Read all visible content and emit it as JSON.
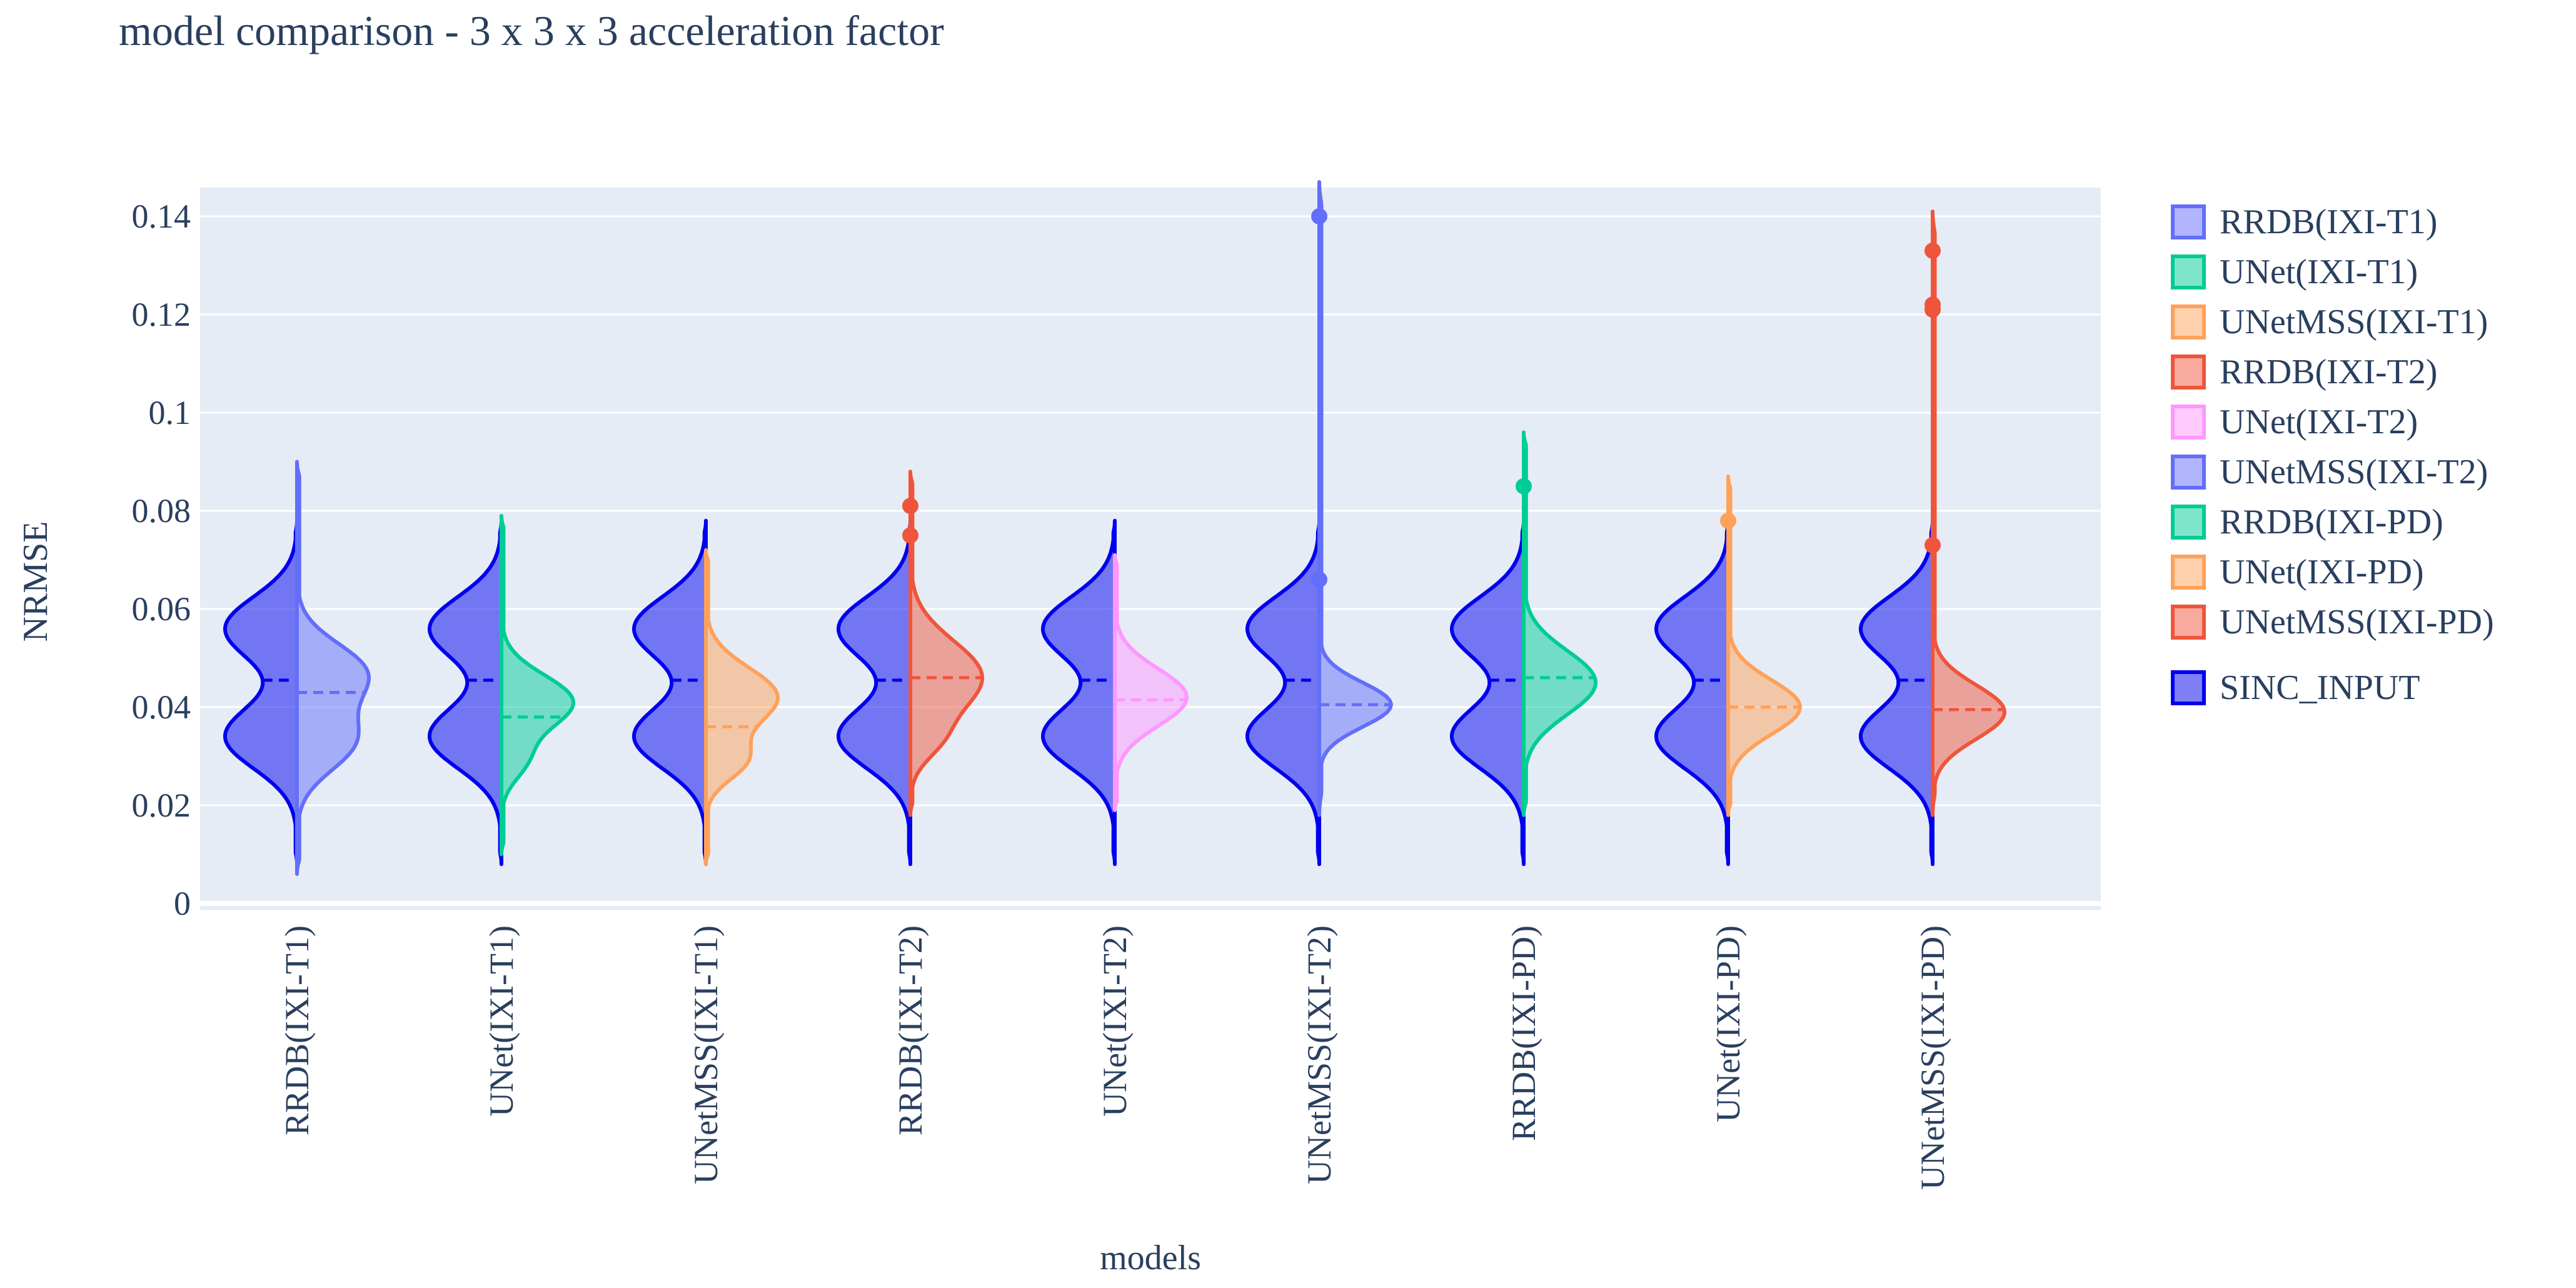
{
  "chart_data": {
    "type": "violin",
    "title": "model comparison - 3 x 3 x 3 acceleration factor",
    "xlabel": "models",
    "ylabel": "NRMSE",
    "ylim": [
      0,
      0.147
    ],
    "yticks": [
      0,
      0.02,
      0.04,
      0.06,
      0.08,
      0.1,
      0.12,
      0.14
    ],
    "ytick_labels": [
      "0",
      "0.02",
      "0.04",
      "0.06",
      "0.08",
      "0.1",
      "0.12",
      "0.14"
    ],
    "categories": [
      "RRDB(IXI-T1)",
      "UNet(IXI-T1)",
      "UNetMSS(IXI-T1)",
      "RRDB(IXI-T2)",
      "UNet(IXI-T2)",
      "UNetMSS(IXI-T2)",
      "RRDB(IXI-PD)",
      "UNet(IXI-PD)",
      "UNetMSS(IXI-PD)"
    ],
    "baseline": {
      "name": "SINC_INPUT",
      "side": "negative",
      "color": "#0000ee",
      "min": 0.008,
      "max": 0.078,
      "mean": 0.0455,
      "modes": [
        0.056,
        0.034
      ],
      "mode_spread": 0.0065
    },
    "series": [
      {
        "name": "RRDB(IXI-T1)",
        "color": "#636efa",
        "min": 0.006,
        "max": 0.09,
        "mean": 0.043,
        "peaks": [
          [
            0.047,
            0.006,
            0.85
          ],
          [
            0.033,
            0.006,
            0.7
          ]
        ],
        "outliers": []
      },
      {
        "name": "UNet(IXI-T1)",
        "color": "#00cc96",
        "min": 0.01,
        "max": 0.079,
        "mean": 0.038,
        "peaks": [
          [
            0.041,
            0.0055,
            1.0
          ],
          [
            0.029,
            0.004,
            0.3
          ]
        ],
        "outliers": []
      },
      {
        "name": "UNetMSS(IXI-T1)",
        "color": "#ffa15a",
        "min": 0.008,
        "max": 0.072,
        "mean": 0.036,
        "peaks": [
          [
            0.042,
            0.006,
            0.9
          ],
          [
            0.029,
            0.004,
            0.45
          ]
        ],
        "outliers": []
      },
      {
        "name": "RRDB(IXI-T2)",
        "color": "#ef553b",
        "min": 0.018,
        "max": 0.088,
        "mean": 0.046,
        "peaks": [
          [
            0.046,
            0.0075,
            1.0
          ],
          [
            0.033,
            0.004,
            0.25
          ]
        ],
        "outliers": [
          0.081,
          0.075
        ]
      },
      {
        "name": "UNet(IXI-T2)",
        "color": "#ff97ff",
        "min": 0.019,
        "max": 0.071,
        "mean": 0.0415,
        "peaks": [
          [
            0.042,
            0.0058,
            1.0
          ]
        ],
        "outliers": []
      },
      {
        "name": "UNetMSS(IXI-T2)",
        "color": "#636efa",
        "min": 0.018,
        "max": 0.147,
        "mean": 0.0405,
        "peaks": [
          [
            0.0405,
            0.0045,
            1.0
          ]
        ],
        "outliers": [
          0.14,
          0.066
        ]
      },
      {
        "name": "RRDB(IXI-PD)",
        "color": "#00cc96",
        "min": 0.018,
        "max": 0.096,
        "mean": 0.046,
        "peaks": [
          [
            0.045,
            0.0065,
            0.9
          ]
        ],
        "outliers": [
          0.085
        ]
      },
      {
        "name": "UNet(IXI-PD)",
        "color": "#ffa15a",
        "min": 0.018,
        "max": 0.087,
        "mean": 0.04,
        "peaks": [
          [
            0.04,
            0.0055,
            0.95
          ]
        ],
        "outliers": [
          0.078
        ]
      },
      {
        "name": "UNetMSS(IXI-PD)",
        "color": "#ef553b",
        "min": 0.018,
        "max": 0.141,
        "mean": 0.0395,
        "peaks": [
          [
            0.039,
            0.0055,
            1.0
          ]
        ],
        "outliers": [
          0.133,
          0.122,
          0.121,
          0.073
        ]
      }
    ],
    "legend": {
      "position": "right",
      "entries": [
        "RRDB(IXI-T1)",
        "UNet(IXI-T1)",
        "UNetMSS(IXI-T1)",
        "RRDB(IXI-T2)",
        "UNet(IXI-T2)",
        "UNetMSS(IXI-T2)",
        "RRDB(IXI-PD)",
        "UNet(IXI-PD)",
        "UNetMSS(IXI-PD)",
        "SINC_INPUT"
      ]
    },
    "grid": true
  }
}
